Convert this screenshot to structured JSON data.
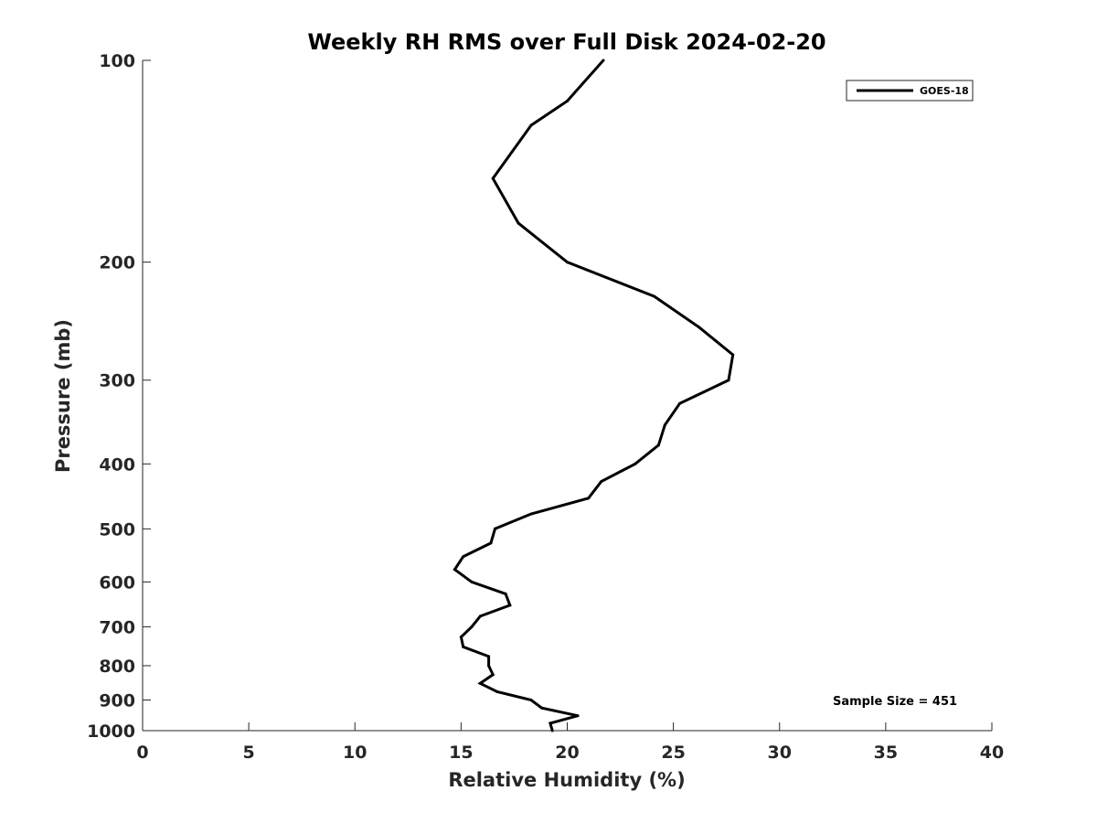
{
  "chart_data": {
    "type": "line",
    "title": "Weekly RH RMS over Full Disk 2024-02-20",
    "xlabel": "Relative Humidity (%)",
    "ylabel": "Pressure (mb)",
    "xlim": [
      0,
      40
    ],
    "ylim": [
      100,
      1000
    ],
    "y_scale": "log",
    "y_reversed": true,
    "grid": false,
    "legend_position": "top-right",
    "x_ticks": [
      0,
      5,
      10,
      15,
      20,
      25,
      30,
      35,
      40
    ],
    "y_ticks": [
      100,
      200,
      300,
      400,
      500,
      600,
      700,
      800,
      900,
      1000
    ],
    "series": [
      {
        "name": "GOES-18",
        "color": "#000000",
        "points": [
          {
            "x": 21.7,
            "y": 100
          },
          {
            "x": 20.0,
            "y": 115
          },
          {
            "x": 18.3,
            "y": 125
          },
          {
            "x": 16.5,
            "y": 150
          },
          {
            "x": 17.7,
            "y": 175
          },
          {
            "x": 20.0,
            "y": 200
          },
          {
            "x": 24.1,
            "y": 225
          },
          {
            "x": 26.2,
            "y": 250
          },
          {
            "x": 27.8,
            "y": 275
          },
          {
            "x": 27.6,
            "y": 300
          },
          {
            "x": 25.3,
            "y": 325
          },
          {
            "x": 24.6,
            "y": 350
          },
          {
            "x": 24.3,
            "y": 375
          },
          {
            "x": 23.2,
            "y": 400
          },
          {
            "x": 21.6,
            "y": 425
          },
          {
            "x": 21.0,
            "y": 450
          },
          {
            "x": 18.3,
            "y": 475
          },
          {
            "x": 16.6,
            "y": 500
          },
          {
            "x": 16.4,
            "y": 525
          },
          {
            "x": 15.1,
            "y": 550
          },
          {
            "x": 14.7,
            "y": 575
          },
          {
            "x": 15.5,
            "y": 600
          },
          {
            "x": 17.1,
            "y": 625
          },
          {
            "x": 17.3,
            "y": 650
          },
          {
            "x": 15.9,
            "y": 675
          },
          {
            "x": 15.5,
            "y": 700
          },
          {
            "x": 15.0,
            "y": 725
          },
          {
            "x": 15.1,
            "y": 750
          },
          {
            "x": 16.3,
            "y": 775
          },
          {
            "x": 16.3,
            "y": 800
          },
          {
            "x": 16.5,
            "y": 825
          },
          {
            "x": 15.9,
            "y": 850
          },
          {
            "x": 16.7,
            "y": 875
          },
          {
            "x": 18.3,
            "y": 900
          },
          {
            "x": 18.8,
            "y": 925
          },
          {
            "x": 20.5,
            "y": 950
          },
          {
            "x": 19.2,
            "y": 975
          },
          {
            "x": 19.3,
            "y": 1000
          }
        ]
      }
    ],
    "annotation": "Sample Size = 451"
  }
}
